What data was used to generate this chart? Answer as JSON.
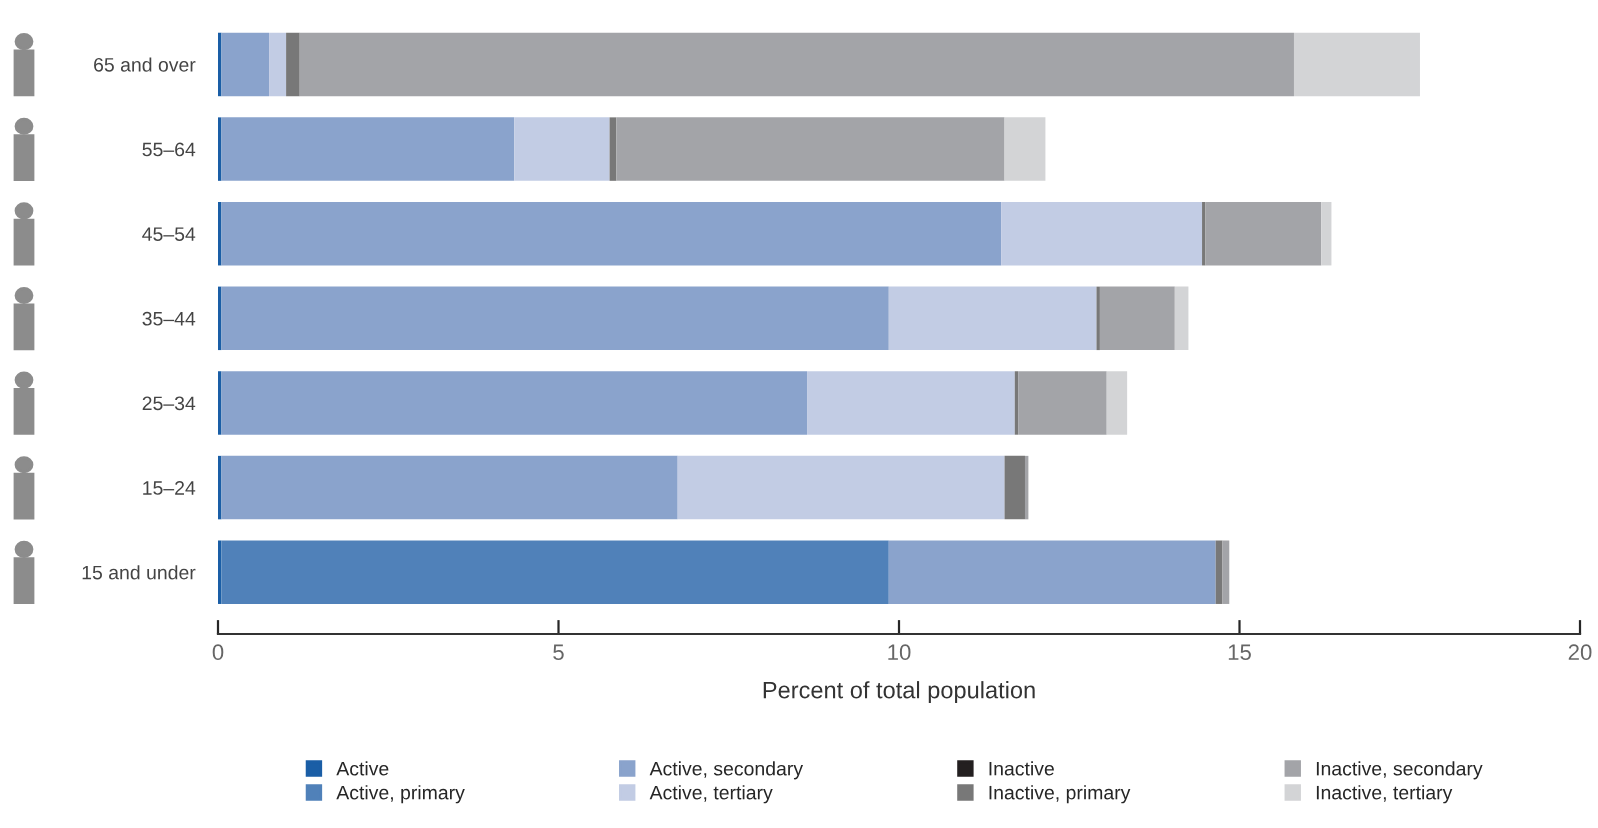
{
  "chart_data": {
    "type": "bar",
    "orientation": "horizontal",
    "stacked": true,
    "xlabel": "Percent of total population",
    "categories": [
      "65 and over",
      "55–64",
      "45–54",
      "35–44",
      "25–34",
      "15–24",
      "15 and under"
    ],
    "series": [
      {
        "name": "Active",
        "color": "#1a5ea6",
        "values": [
          0.05,
          0.05,
          0.05,
          0.05,
          0.05,
          0.05,
          0.05
        ]
      },
      {
        "name": "Active, primary",
        "color": "#5081b9",
        "values": [
          0,
          0,
          0,
          0,
          0,
          0,
          9.8
        ]
      },
      {
        "name": "Active, secondary",
        "color": "#8aa3cc",
        "values": [
          0.7,
          4.3,
          11.45,
          9.8,
          8.6,
          6.7,
          4.8
        ]
      },
      {
        "name": "Active, tertiary",
        "color": "#c2cce4",
        "values": [
          0.25,
          1.4,
          2.95,
          3.05,
          3.05,
          4.8,
          0
        ]
      },
      {
        "name": "Inactive",
        "color": "#231f20",
        "values": [
          0,
          0,
          0,
          0,
          0,
          0,
          0
        ]
      },
      {
        "name": "Inactive, primary",
        "color": "#787878",
        "values": [
          0.2,
          0.1,
          0.05,
          0.05,
          0.05,
          0.3,
          0.1
        ]
      },
      {
        "name": "Inactive, secondary",
        "color": "#a3a4a8",
        "values": [
          14.6,
          5.7,
          1.7,
          1.1,
          1.3,
          0.05,
          0.1
        ]
      },
      {
        "name": "Inactive, tertiary",
        "color": "#d3d4d6",
        "values": [
          1.85,
          0.6,
          0.15,
          0.2,
          0.3,
          0,
          0
        ]
      }
    ],
    "xlim": [
      0,
      20
    ],
    "xticks": [
      0,
      5,
      10,
      15,
      20
    ],
    "legend": "bottom"
  }
}
